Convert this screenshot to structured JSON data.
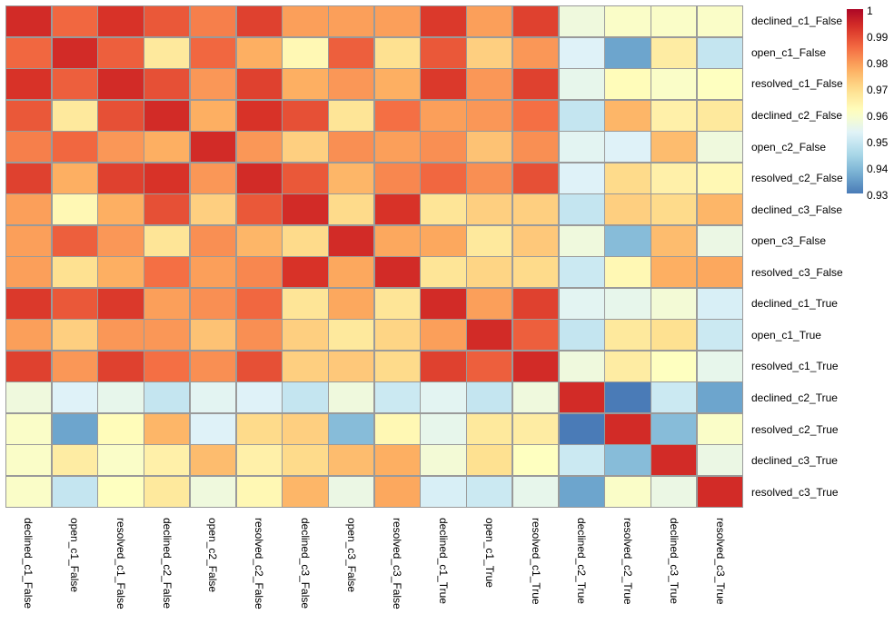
{
  "chart_data": {
    "type": "heatmap",
    "title": "",
    "labels": [
      "declined_c1_False",
      "open_c1_False",
      "resolved_c1_False",
      "declined_c2_False",
      "open_c2_False",
      "resolved_c2_False",
      "declined_c3_False",
      "open_c3_False",
      "resolved_c3_False",
      "declined_c1_True",
      "open_c1_True",
      "resolved_c1_True",
      "declined_c2_True",
      "resolved_c2_True",
      "declined_c3_True",
      "resolved_c3_True"
    ],
    "matrix": [
      [
        0.994,
        0.986,
        0.993,
        0.988,
        0.983,
        0.991,
        0.979,
        0.979,
        0.979,
        0.992,
        0.979,
        0.991,
        0.957,
        0.96,
        0.96,
        0.96
      ],
      [
        0.986,
        0.994,
        0.987,
        0.967,
        0.986,
        0.977,
        0.963,
        0.987,
        0.969,
        0.988,
        0.972,
        0.98,
        0.953,
        0.936,
        0.966,
        0.949
      ],
      [
        0.993,
        0.987,
        0.994,
        0.989,
        0.98,
        0.991,
        0.977,
        0.98,
        0.977,
        0.992,
        0.98,
        0.991,
        0.955,
        0.962,
        0.96,
        0.961
      ],
      [
        0.988,
        0.967,
        0.989,
        0.994,
        0.977,
        0.993,
        0.989,
        0.968,
        0.985,
        0.979,
        0.98,
        0.985,
        0.949,
        0.976,
        0.965,
        0.967
      ],
      [
        0.983,
        0.986,
        0.98,
        0.977,
        0.994,
        0.98,
        0.972,
        0.981,
        0.979,
        0.981,
        0.974,
        0.981,
        0.954,
        0.953,
        0.975,
        0.957
      ],
      [
        0.991,
        0.977,
        0.991,
        0.993,
        0.98,
        0.994,
        0.988,
        0.976,
        0.982,
        0.986,
        0.981,
        0.989,
        0.953,
        0.97,
        0.965,
        0.963
      ],
      [
        0.979,
        0.963,
        0.977,
        0.989,
        0.972,
        0.988,
        0.994,
        0.97,
        0.993,
        0.968,
        0.972,
        0.972,
        0.949,
        0.972,
        0.97,
        0.976
      ],
      [
        0.979,
        0.987,
        0.98,
        0.968,
        0.981,
        0.976,
        0.97,
        0.994,
        0.978,
        0.978,
        0.967,
        0.973,
        0.957,
        0.94,
        0.975,
        0.956
      ],
      [
        0.979,
        0.969,
        0.977,
        0.985,
        0.979,
        0.982,
        0.993,
        0.978,
        0.994,
        0.968,
        0.971,
        0.97,
        0.95,
        0.963,
        0.977,
        0.978
      ],
      [
        0.992,
        0.988,
        0.992,
        0.979,
        0.981,
        0.986,
        0.968,
        0.978,
        0.968,
        0.994,
        0.979,
        0.991,
        0.954,
        0.955,
        0.958,
        0.952
      ],
      [
        0.979,
        0.972,
        0.98,
        0.98,
        0.974,
        0.981,
        0.972,
        0.967,
        0.971,
        0.979,
        0.994,
        0.987,
        0.949,
        0.967,
        0.969,
        0.95
      ],
      [
        0.991,
        0.98,
        0.991,
        0.985,
        0.981,
        0.989,
        0.972,
        0.973,
        0.97,
        0.991,
        0.987,
        0.994,
        0.957,
        0.966,
        0.961,
        0.955
      ],
      [
        0.957,
        0.953,
        0.955,
        0.949,
        0.954,
        0.953,
        0.949,
        0.957,
        0.95,
        0.954,
        0.949,
        0.957,
        0.994,
        0.93,
        0.95,
        0.936
      ],
      [
        0.96,
        0.936,
        0.962,
        0.976,
        0.953,
        0.97,
        0.972,
        0.94,
        0.963,
        0.955,
        0.967,
        0.966,
        0.93,
        0.994,
        0.94,
        0.96
      ],
      [
        0.96,
        0.966,
        0.96,
        0.965,
        0.975,
        0.965,
        0.97,
        0.975,
        0.977,
        0.958,
        0.969,
        0.961,
        0.95,
        0.94,
        0.994,
        0.956
      ],
      [
        0.96,
        0.949,
        0.961,
        0.967,
        0.957,
        0.963,
        0.976,
        0.956,
        0.978,
        0.952,
        0.95,
        0.955,
        0.936,
        0.96,
        0.956,
        0.994
      ]
    ],
    "colorbar": {
      "tick_labels": [
        "1",
        "0.99",
        "0.98",
        "0.97",
        "0.96",
        "0.95",
        "0.94",
        "0.93"
      ],
      "tick_values": [
        1.0,
        0.99,
        0.98,
        0.97,
        0.96,
        0.95,
        0.94,
        0.93
      ],
      "display_range": [
        0.93,
        1.0
      ],
      "legend_position": "top-right"
    },
    "color_scale": {
      "name": "RdYlBu_r",
      "anchor_colors": [
        "#313695",
        "#4575b4",
        "#74add1",
        "#abd9e9",
        "#e0f3f8",
        "#ffffbf",
        "#fee090",
        "#fdae61",
        "#f46d43",
        "#d73027",
        "#a50026"
      ],
      "map_range": [
        0.9212,
        1.0012
      ]
    },
    "grid_line_color": "#9a9a9a",
    "background_color": "#ffffff",
    "grid_on": true
  }
}
